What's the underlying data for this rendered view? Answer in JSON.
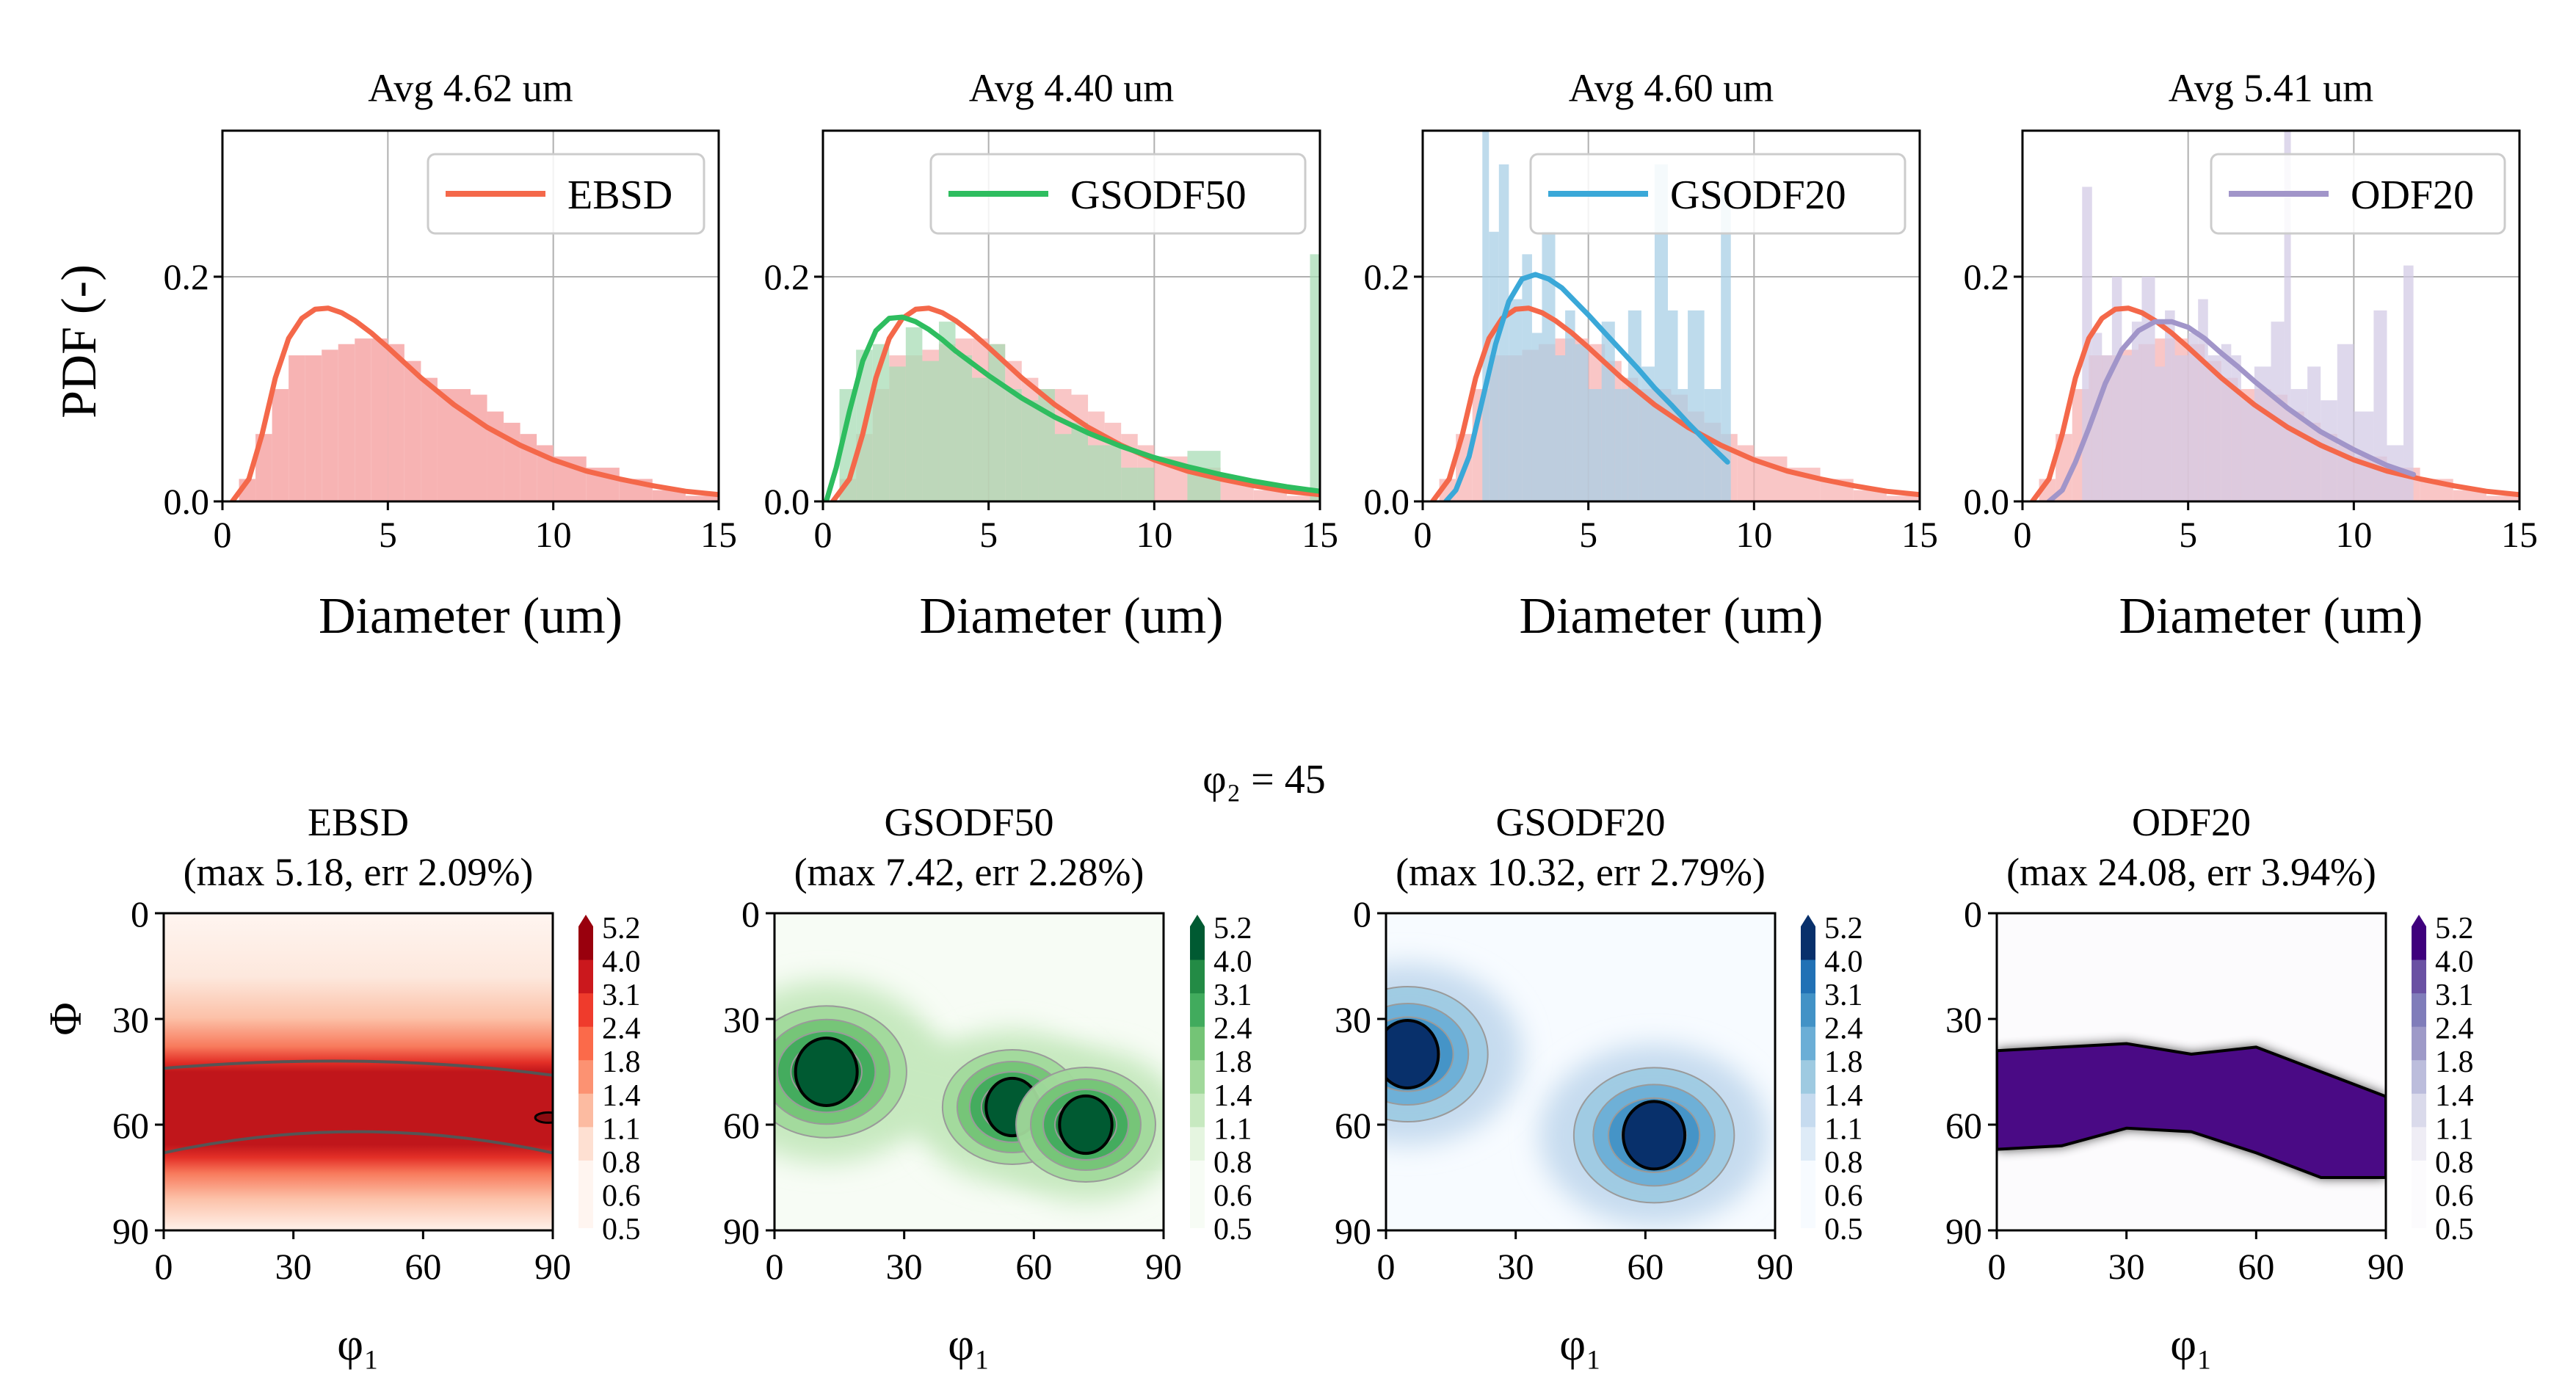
{
  "figure": {
    "ylabel_shared": "PDF (-)",
    "section_title": "φ₂ = 45",
    "colors": {
      "ebsd": "#f4684a",
      "gsodf50": "#2ebd5f",
      "gsodf20": "#3aa8d8",
      "odf20": "#a195c9"
    }
  },
  "chart_data": [
    {
      "type": "line",
      "title": "Avg 4.62 um",
      "xlabel": "Diameter (um)",
      "ylabel": "PDF (-)",
      "xlim": [
        0,
        15
      ],
      "ylim": [
        0,
        0.33
      ],
      "xticks": [
        "0",
        "5",
        "10",
        "15"
      ],
      "yticks": [
        "0.0",
        "0.2"
      ],
      "legend": "EBSD",
      "color": "#f4684a",
      "series": [
        {
          "name": "EBSD",
          "x": [
            0.3,
            0.8,
            1.2,
            1.6,
            2.0,
            2.4,
            2.8,
            3.2,
            3.6,
            4.0,
            4.5,
            5.0,
            6.0,
            7.0,
            8.0,
            9.0,
            10.0,
            11.0,
            12.0,
            13.0,
            14.0,
            15.0
          ],
          "values": [
            0.0,
            0.02,
            0.06,
            0.11,
            0.145,
            0.163,
            0.171,
            0.172,
            0.168,
            0.161,
            0.15,
            0.137,
            0.11,
            0.086,
            0.066,
            0.05,
            0.037,
            0.027,
            0.02,
            0.014,
            0.009,
            0.006
          ]
        }
      ],
      "hist": [
        {
          "name": "EBSD",
          "color": "#f7b3b3",
          "edges": [
            0,
            0.5,
            1.0,
            1.5,
            2.0,
            2.5,
            3.0,
            3.5,
            4.0,
            4.5,
            5.0,
            5.5,
            6.0,
            6.5,
            7.0,
            7.5,
            8.0,
            8.5,
            9.0,
            9.5,
            10.0,
            11.0,
            12.0,
            13.0,
            14.0,
            15.0
          ],
          "values": [
            0.0,
            0.02,
            0.06,
            0.1,
            0.13,
            0.13,
            0.135,
            0.14,
            0.145,
            0.145,
            0.14,
            0.125,
            0.11,
            0.1,
            0.1,
            0.095,
            0.08,
            0.07,
            0.06,
            0.05,
            0.04,
            0.03,
            0.02,
            0.01,
            0.005
          ]
        }
      ]
    },
    {
      "type": "line",
      "title": "Avg 4.40 um",
      "xlabel": "Diameter (um)",
      "ylabel": "",
      "xlim": [
        0,
        15
      ],
      "ylim": [
        0,
        0.33
      ],
      "xticks": [
        "0",
        "5",
        "10",
        "15"
      ],
      "yticks": [
        "0.0",
        "0.2"
      ],
      "legend": "GSODF50",
      "color": "#2ebd5f",
      "series": [
        {
          "name": "EBSD",
          "x": [
            0.3,
            0.8,
            1.2,
            1.6,
            2.0,
            2.4,
            2.8,
            3.2,
            3.6,
            4.0,
            4.5,
            5.0,
            6.0,
            7.0,
            8.0,
            9.0,
            10.0,
            11.0,
            12.0,
            13.0,
            14.0,
            15.0
          ],
          "values": [
            0.0,
            0.02,
            0.06,
            0.11,
            0.145,
            0.163,
            0.171,
            0.172,
            0.168,
            0.161,
            0.15,
            0.137,
            0.11,
            0.086,
            0.066,
            0.05,
            0.037,
            0.027,
            0.02,
            0.014,
            0.009,
            0.006
          ]
        },
        {
          "name": "GSODF50",
          "x": [
            0.1,
            0.4,
            0.8,
            1.2,
            1.6,
            2.0,
            2.4,
            2.8,
            3.2,
            3.6,
            4.0,
            5.0,
            6.0,
            7.0,
            8.0,
            9.0,
            10.0,
            11.0,
            12.0,
            13.0,
            14.0,
            15.0
          ],
          "values": [
            0.0,
            0.03,
            0.08,
            0.125,
            0.152,
            0.163,
            0.164,
            0.16,
            0.153,
            0.144,
            0.134,
            0.112,
            0.092,
            0.075,
            0.061,
            0.049,
            0.039,
            0.031,
            0.024,
            0.018,
            0.013,
            0.009
          ]
        }
      ],
      "hist": [
        {
          "name": "GSODF50",
          "color": "#a8dcb5",
          "edges": [
            0,
            0.5,
            1.0,
            1.5,
            2.0,
            2.5,
            3.0,
            3.5,
            4.0,
            4.5,
            5.0,
            5.5,
            6.0,
            6.5,
            7.0,
            7.5,
            8.0,
            9.0,
            10.0,
            11.0,
            12.0,
            14.7,
            15.0
          ],
          "values": [
            0.0,
            0.1,
            0.135,
            0.14,
            0.12,
            0.155,
            0.125,
            0.16,
            0.13,
            0.11,
            0.14,
            0.1,
            0.09,
            0.1,
            0.06,
            0.07,
            0.05,
            0.03,
            0.0,
            0.045,
            0.0,
            0.22
          ]
        }
      ]
    },
    {
      "type": "line",
      "title": "Avg 4.60 um",
      "xlabel": "Diameter (um)",
      "ylabel": "",
      "xlim": [
        0,
        15
      ],
      "ylim": [
        0,
        0.33
      ],
      "xticks": [
        "0",
        "5",
        "10",
        "15"
      ],
      "yticks": [
        "0.0",
        "0.2"
      ],
      "legend": "GSODF20",
      "color": "#3aa8d8",
      "series": [
        {
          "name": "EBSD",
          "x": [
            0.3,
            0.8,
            1.2,
            1.6,
            2.0,
            2.4,
            2.8,
            3.2,
            3.6,
            4.0,
            4.5,
            5.0,
            6.0,
            7.0,
            8.0,
            9.0,
            10.0,
            11.0,
            12.0,
            13.0,
            14.0,
            15.0
          ],
          "values": [
            0.0,
            0.02,
            0.06,
            0.11,
            0.145,
            0.163,
            0.171,
            0.172,
            0.168,
            0.161,
            0.15,
            0.137,
            0.11,
            0.086,
            0.066,
            0.05,
            0.037,
            0.027,
            0.02,
            0.014,
            0.009,
            0.006
          ]
        },
        {
          "name": "GSODF20",
          "x": [
            0.7,
            1.0,
            1.4,
            1.8,
            2.2,
            2.6,
            3.0,
            3.4,
            3.8,
            4.2,
            4.6,
            5.0,
            5.5,
            6.0,
            6.5,
            7.0,
            7.5,
            8.0,
            8.5,
            9.2
          ],
          "values": [
            0.0,
            0.01,
            0.04,
            0.09,
            0.14,
            0.178,
            0.198,
            0.202,
            0.198,
            0.19,
            0.178,
            0.166,
            0.15,
            0.134,
            0.118,
            0.101,
            0.086,
            0.07,
            0.055,
            0.035
          ]
        }
      ],
      "hist": [
        {
          "name": "GSODF20",
          "color": "#a8cfe6",
          "edges": [
            1.8,
            2.0,
            2.3,
            2.6,
            3.0,
            3.3,
            3.6,
            4.0,
            4.3,
            4.6,
            5.0,
            5.4,
            5.8,
            6.2,
            6.6,
            7.0,
            7.4,
            7.7,
            8.0,
            8.5,
            9.0,
            9.3
          ],
          "values": [
            0.33,
            0.24,
            0.3,
            0.18,
            0.22,
            0.15,
            0.24,
            0.13,
            0.17,
            0.14,
            0.1,
            0.16,
            0.1,
            0.17,
            0.12,
            0.3,
            0.17,
            0.1,
            0.17,
            0.1,
            0.28
          ]
        }
      ]
    },
    {
      "type": "line",
      "title": "Avg 5.41 um",
      "xlabel": "Diameter (um)",
      "ylabel": "",
      "xlim": [
        0,
        15
      ],
      "ylim": [
        0,
        0.33
      ],
      "xticks": [
        "0",
        "5",
        "10",
        "15"
      ],
      "yticks": [
        "0.0",
        "0.2"
      ],
      "legend": "ODF20",
      "color": "#a195c9",
      "series": [
        {
          "name": "EBSD",
          "x": [
            0.3,
            0.8,
            1.2,
            1.6,
            2.0,
            2.4,
            2.8,
            3.2,
            3.6,
            4.0,
            4.5,
            5.0,
            6.0,
            7.0,
            8.0,
            9.0,
            10.0,
            11.0,
            12.0,
            13.0,
            14.0,
            15.0
          ],
          "values": [
            0.0,
            0.02,
            0.06,
            0.11,
            0.145,
            0.163,
            0.171,
            0.172,
            0.168,
            0.161,
            0.15,
            0.137,
            0.11,
            0.086,
            0.066,
            0.05,
            0.037,
            0.027,
            0.02,
            0.014,
            0.009,
            0.006
          ]
        },
        {
          "name": "ODF20",
          "x": [
            0.8,
            1.2,
            1.6,
            2.0,
            2.5,
            3.0,
            3.5,
            4.0,
            4.5,
            5.0,
            5.5,
            6.0,
            6.5,
            7.0,
            8.0,
            9.0,
            10.0,
            11.0,
            11.8
          ],
          "values": [
            0.0,
            0.01,
            0.035,
            0.065,
            0.105,
            0.135,
            0.152,
            0.16,
            0.16,
            0.155,
            0.145,
            0.132,
            0.12,
            0.107,
            0.083,
            0.062,
            0.046,
            0.032,
            0.024
          ]
        }
      ],
      "hist": [
        {
          "name": "ODF20",
          "color": "#d3cbe6",
          "edges": [
            1.8,
            2.1,
            2.4,
            2.7,
            3.0,
            3.3,
            3.6,
            4.0,
            4.3,
            4.6,
            5.0,
            5.3,
            5.6,
            6.0,
            6.3,
            6.6,
            7.0,
            7.5,
            7.9,
            8.1,
            8.6,
            9.0,
            9.5,
            10.0,
            10.6,
            11.0,
            11.5,
            11.8
          ],
          "values": [
            0.28,
            0.15,
            0.13,
            0.2,
            0.13,
            0.16,
            0.2,
            0.12,
            0.17,
            0.13,
            0.15,
            0.18,
            0.13,
            0.14,
            0.13,
            0.09,
            0.12,
            0.16,
            0.33,
            0.1,
            0.12,
            0.09,
            0.14,
            0.08,
            0.17,
            0.05,
            0.21
          ]
        }
      ]
    },
    {
      "type": "heatmap",
      "title_line1": "EBSD",
      "title_line2": "(max 5.18, err 2.09%)",
      "xlabel": "φ₁",
      "ylabel": "Φ",
      "xlim": [
        0,
        90
      ],
      "ylim": [
        90,
        0
      ],
      "xticks": [
        "0",
        "30",
        "60",
        "90"
      ],
      "yticks": [
        "0",
        "30",
        "60",
        "90"
      ],
      "colorbar": [
        "5.2",
        "4.0",
        "3.1",
        "2.4",
        "1.8",
        "1.4",
        "1.1",
        "0.8",
        "0.6",
        "0.5"
      ],
      "cmap": "Reds",
      "band": {
        "phi_center_at_phi1_0": 54,
        "phi_center_at_phi1_90": 55,
        "peak": 4.6
      }
    },
    {
      "type": "heatmap",
      "title_line1": "GSODF50",
      "title_line2": "(max 7.42, err 2.28%)",
      "xlabel": "φ₁",
      "ylabel": "",
      "xlim": [
        0,
        90
      ],
      "ylim": [
        90,
        0
      ],
      "xticks": [
        "0",
        "30",
        "60",
        "90"
      ],
      "yticks": [
        "0",
        "30",
        "60",
        "90"
      ],
      "colorbar": [
        "5.2",
        "4.0",
        "3.1",
        "2.4",
        "1.8",
        "1.4",
        "1.1",
        "0.8",
        "0.6",
        "0.5"
      ],
      "cmap": "Greens",
      "peaks": [
        {
          "phi1": 12,
          "Phi": 45,
          "value": 7.42
        },
        {
          "phi1": 55,
          "Phi": 55,
          "value": 4.5
        },
        {
          "phi1": 72,
          "Phi": 60,
          "value": 5.5
        }
      ]
    },
    {
      "type": "heatmap",
      "title_line1": "GSODF20",
      "title_line2": "(max 10.32, err 2.79%)",
      "xlabel": "φ₁",
      "ylabel": "",
      "xlim": [
        0,
        90
      ],
      "ylim": [
        90,
        0
      ],
      "xticks": [
        "0",
        "30",
        "60",
        "90"
      ],
      "yticks": [
        "0",
        "30",
        "60",
        "90"
      ],
      "colorbar": [
        "5.2",
        "4.0",
        "3.1",
        "2.4",
        "1.8",
        "1.4",
        "1.1",
        "0.8",
        "0.6",
        "0.5"
      ],
      "cmap": "Blues",
      "peaks": [
        {
          "phi1": 5,
          "Phi": 40,
          "value": 10.32
        },
        {
          "phi1": 62,
          "Phi": 63,
          "value": 8.0
        }
      ]
    },
    {
      "type": "heatmap",
      "title_line1": "ODF20",
      "title_line2": "(max 24.08, err 3.94%)",
      "xlabel": "φ₁",
      "ylabel": "",
      "xlim": [
        0,
        90
      ],
      "ylim": [
        90,
        0
      ],
      "xticks": [
        "0",
        "30",
        "60",
        "90"
      ],
      "yticks": [
        "0",
        "30",
        "60",
        "90"
      ],
      "colorbar": [
        "5.2",
        "4.0",
        "3.1",
        "2.4",
        "1.8",
        "1.4",
        "1.1",
        "0.8",
        "0.6",
        "0.5"
      ],
      "cmap": "Purples",
      "band": {
        "upper_Phi": [
          39,
          38,
          37,
          40,
          38,
          45,
          52
        ],
        "lower_Phi": [
          67,
          66,
          61,
          62,
          68,
          75,
          75
        ],
        "at_phi1": [
          0,
          15,
          30,
          45,
          60,
          75,
          90
        ],
        "peak": 24.08
      }
    }
  ]
}
